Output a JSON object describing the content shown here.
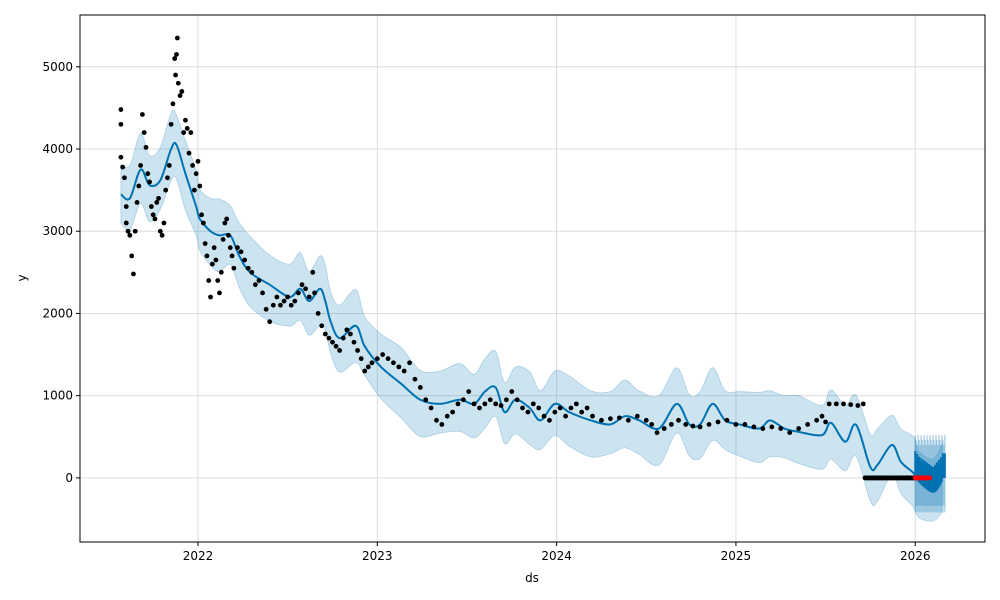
{
  "chart_data": {
    "type": "line",
    "title": "",
    "xlabel": "ds",
    "ylabel": "y",
    "xlim": [
      2021.342,
      2026.389
    ],
    "ylim": [
      -780,
      5630
    ],
    "grid": true,
    "x_ticks": [
      {
        "v": 2022,
        "label": "2022"
      },
      {
        "v": 2023,
        "label": "2023"
      },
      {
        "v": 2024,
        "label": "2024"
      },
      {
        "v": 2025,
        "label": "2025"
      },
      {
        "v": 2026,
        "label": "2026"
      }
    ],
    "y_ticks": [
      {
        "v": 0,
        "label": "0"
      },
      {
        "v": 1000,
        "label": "1000"
      },
      {
        "v": 2000,
        "label": "2000"
      },
      {
        "v": 3000,
        "label": "3000"
      },
      {
        "v": 4000,
        "label": "4000"
      },
      {
        "v": 5000,
        "label": "5000"
      }
    ],
    "colors": {
      "forecast": "#0072B2",
      "band": "#0072B2",
      "observed": "#000000",
      "future_points": "#ff0000"
    },
    "yhat": [
      [
        2021.57,
        3450
      ],
      [
        2021.62,
        3400
      ],
      [
        2021.68,
        3750
      ],
      [
        2021.73,
        3560
      ],
      [
        2021.79,
        3620
      ],
      [
        2021.85,
        4000
      ],
      [
        2021.88,
        4050
      ],
      [
        2021.93,
        3700
      ],
      [
        2021.99,
        3300
      ],
      [
        2022.01,
        3150
      ],
      [
        2022.07,
        3000
      ],
      [
        2022.12,
        2950
      ],
      [
        2022.18,
        2950
      ],
      [
        2022.23,
        2700
      ],
      [
        2022.29,
        2500
      ],
      [
        2022.4,
        2350
      ],
      [
        2022.51,
        2200
      ],
      [
        2022.57,
        2300
      ],
      [
        2022.62,
        2150
      ],
      [
        2022.68,
        2300
      ],
      [
        2022.71,
        2150
      ],
      [
        2022.74,
        1900
      ],
      [
        2022.79,
        1700
      ],
      [
        2022.88,
        1850
      ],
      [
        2022.93,
        1600
      ],
      [
        2023.02,
        1350
      ],
      [
        2023.13,
        1150
      ],
      [
        2023.24,
        950
      ],
      [
        2023.35,
        900
      ],
      [
        2023.46,
        950
      ],
      [
        2023.54,
        900
      ],
      [
        2023.6,
        1050
      ],
      [
        2023.66,
        1100
      ],
      [
        2023.71,
        800
      ],
      [
        2023.77,
        950
      ],
      [
        2023.85,
        850
      ],
      [
        2023.91,
        700
      ],
      [
        2023.99,
        900
      ],
      [
        2024.07,
        800
      ],
      [
        2024.19,
        700
      ],
      [
        2024.3,
        650
      ],
      [
        2024.38,
        750
      ],
      [
        2024.46,
        700
      ],
      [
        2024.57,
        600
      ],
      [
        2024.67,
        900
      ],
      [
        2024.74,
        650
      ],
      [
        2024.8,
        650
      ],
      [
        2024.87,
        900
      ],
      [
        2024.94,
        700
      ],
      [
        2025.02,
        650
      ],
      [
        2025.13,
        600
      ],
      [
        2025.19,
        700
      ],
      [
        2025.27,
        600
      ],
      [
        2025.35,
        560
      ],
      [
        2025.48,
        520
      ],
      [
        2025.53,
        670
      ],
      [
        2025.61,
        440
      ],
      [
        2025.67,
        645
      ],
      [
        2025.75,
        130
      ],
      [
        2025.79,
        160
      ],
      [
        2025.87,
        400
      ],
      [
        2025.92,
        195
      ],
      [
        2025.99,
        60
      ],
      [
        2026.02,
        -40
      ],
      [
        2026.1,
        -170
      ],
      [
        2026.15,
        -30
      ]
    ],
    "band_halfwidth": 400,
    "observed": [
      [
        2021.57,
        4480
      ],
      [
        2021.57,
        4300
      ],
      [
        2021.57,
        3900
      ],
      [
        2021.58,
        3780
      ],
      [
        2021.59,
        3650
      ],
      [
        2021.6,
        3300
      ],
      [
        2021.6,
        3100
      ],
      [
        2021.61,
        3000
      ],
      [
        2021.62,
        2950
      ],
      [
        2021.63,
        2700
      ],
      [
        2021.64,
        2480
      ],
      [
        2021.65,
        3000
      ],
      [
        2021.66,
        3350
      ],
      [
        2021.67,
        3550
      ],
      [
        2021.68,
        3800
      ],
      [
        2021.69,
        4420
      ],
      [
        2021.7,
        4200
      ],
      [
        2021.71,
        4020
      ],
      [
        2021.72,
        3700
      ],
      [
        2021.73,
        3600
      ],
      [
        2021.74,
        3300
      ],
      [
        2021.75,
        3200
      ],
      [
        2021.76,
        3150
      ],
      [
        2021.77,
        3350
      ],
      [
        2021.78,
        3400
      ],
      [
        2021.79,
        3000
      ],
      [
        2021.8,
        2950
      ],
      [
        2021.81,
        3100
      ],
      [
        2021.82,
        3500
      ],
      [
        2021.83,
        3650
      ],
      [
        2021.84,
        3800
      ],
      [
        2021.85,
        4300
      ],
      [
        2021.86,
        4550
      ],
      [
        2021.87,
        5100
      ],
      [
        2021.875,
        4900
      ],
      [
        2021.88,
        5150
      ],
      [
        2021.885,
        5350
      ],
      [
        2021.89,
        4800
      ],
      [
        2021.9,
        4650
      ],
      [
        2021.91,
        4700
      ],
      [
        2021.92,
        4200
      ],
      [
        2021.93,
        4350
      ],
      [
        2021.94,
        4250
      ],
      [
        2021.95,
        3950
      ],
      [
        2021.96,
        4200
      ],
      [
        2021.97,
        3800
      ],
      [
        2021.98,
        3500
      ],
      [
        2021.99,
        3700
      ],
      [
        2022.0,
        3850
      ],
      [
        2022.01,
        3550
      ],
      [
        2022.02,
        3200
      ],
      [
        2022.03,
        3100
      ],
      [
        2022.04,
        2850
      ],
      [
        2022.05,
        2700
      ],
      [
        2022.06,
        2400
      ],
      [
        2022.07,
        2200
      ],
      [
        2022.08,
        2600
      ],
      [
        2022.09,
        2800
      ],
      [
        2022.1,
        2650
      ],
      [
        2022.11,
        2400
      ],
      [
        2022.12,
        2250
      ],
      [
        2022.13,
        2500
      ],
      [
        2022.14,
        2900
      ],
      [
        2022.15,
        3100
      ],
      [
        2022.16,
        3150
      ],
      [
        2022.17,
        2950
      ],
      [
        2022.18,
        2800
      ],
      [
        2022.19,
        2700
      ],
      [
        2022.2,
        2550
      ],
      [
        2022.22,
        2800
      ],
      [
        2022.24,
        2750
      ],
      [
        2022.26,
        2650
      ],
      [
        2022.28,
        2550
      ],
      [
        2022.3,
        2500
      ],
      [
        2022.32,
        2350
      ],
      [
        2022.34,
        2400
      ],
      [
        2022.36,
        2250
      ],
      [
        2022.38,
        2050
      ],
      [
        2022.4,
        1900
      ],
      [
        2022.42,
        2100
      ],
      [
        2022.44,
        2200
      ],
      [
        2022.46,
        2100
      ],
      [
        2022.48,
        2150
      ],
      [
        2022.5,
        2200
      ],
      [
        2022.52,
        2100
      ],
      [
        2022.54,
        2150
      ],
      [
        2022.56,
        2250
      ],
      [
        2022.58,
        2350
      ],
      [
        2022.6,
        2300
      ],
      [
        2022.62,
        2200
      ],
      [
        2022.64,
        2500
      ],
      [
        2022.65,
        2250
      ],
      [
        2022.67,
        2000
      ],
      [
        2022.69,
        1850
      ],
      [
        2022.71,
        1750
      ],
      [
        2022.73,
        1700
      ],
      [
        2022.75,
        1650
      ],
      [
        2022.77,
        1600
      ],
      [
        2022.79,
        1550
      ],
      [
        2022.81,
        1700
      ],
      [
        2022.83,
        1800
      ],
      [
        2022.85,
        1750
      ],
      [
        2022.87,
        1650
      ],
      [
        2022.89,
        1550
      ],
      [
        2022.91,
        1450
      ],
      [
        2022.93,
        1300
      ],
      [
        2022.95,
        1350
      ],
      [
        2022.97,
        1400
      ],
      [
        2023.0,
        1450
      ],
      [
        2023.03,
        1500
      ],
      [
        2023.06,
        1450
      ],
      [
        2023.09,
        1400
      ],
      [
        2023.12,
        1350
      ],
      [
        2023.15,
        1300
      ],
      [
        2023.18,
        1400
      ],
      [
        2023.21,
        1200
      ],
      [
        2023.24,
        1100
      ],
      [
        2023.27,
        950
      ],
      [
        2023.3,
        850
      ],
      [
        2023.33,
        700
      ],
      [
        2023.36,
        650
      ],
      [
        2023.39,
        750
      ],
      [
        2023.42,
        800
      ],
      [
        2023.45,
        900
      ],
      [
        2023.48,
        950
      ],
      [
        2023.51,
        1050
      ],
      [
        2023.54,
        900
      ],
      [
        2023.57,
        850
      ],
      [
        2023.6,
        900
      ],
      [
        2023.63,
        950
      ],
      [
        2023.66,
        900
      ],
      [
        2023.69,
        880
      ],
      [
        2023.72,
        950
      ],
      [
        2023.75,
        1050
      ],
      [
        2023.78,
        950
      ],
      [
        2023.81,
        850
      ],
      [
        2023.84,
        800
      ],
      [
        2023.87,
        900
      ],
      [
        2023.9,
        850
      ],
      [
        2023.93,
        750
      ],
      [
        2023.96,
        700
      ],
      [
        2023.99,
        800
      ],
      [
        2024.02,
        850
      ],
      [
        2024.05,
        750
      ],
      [
        2024.08,
        850
      ],
      [
        2024.11,
        900
      ],
      [
        2024.14,
        800
      ],
      [
        2024.17,
        850
      ],
      [
        2024.2,
        750
      ],
      [
        2024.25,
        700
      ],
      [
        2024.3,
        720
      ],
      [
        2024.35,
        730
      ],
      [
        2024.4,
        700
      ],
      [
        2024.45,
        750
      ],
      [
        2024.5,
        700
      ],
      [
        2024.53,
        650
      ],
      [
        2024.56,
        550
      ],
      [
        2024.6,
        600
      ],
      [
        2024.64,
        650
      ],
      [
        2024.68,
        700
      ],
      [
        2024.72,
        650
      ],
      [
        2024.76,
        630
      ],
      [
        2024.8,
        620
      ],
      [
        2024.85,
        650
      ],
      [
        2024.9,
        680
      ],
      [
        2024.95,
        700
      ],
      [
        2025.0,
        650
      ],
      [
        2025.05,
        650
      ],
      [
        2025.1,
        620
      ],
      [
        2025.15,
        600
      ],
      [
        2025.2,
        620
      ],
      [
        2025.25,
        600
      ],
      [
        2025.3,
        550
      ],
      [
        2025.35,
        600
      ],
      [
        2025.4,
        650
      ],
      [
        2025.45,
        700
      ],
      [
        2025.48,
        750
      ],
      [
        2025.5,
        680
      ],
      [
        2025.52,
        900
      ],
      [
        2025.56,
        900
      ],
      [
        2025.6,
        900
      ],
      [
        2025.64,
        890
      ],
      [
        2025.68,
        880
      ],
      [
        2025.71,
        900
      ]
    ],
    "observed_zero_run": {
      "start": 2025.72,
      "end": 2026.0,
      "value": 0
    },
    "future_points": {
      "start": 2026.0,
      "end": 2026.08,
      "value": 0
    },
    "forecast_intervals": {
      "start": 2026.0,
      "end": 2026.17,
      "lower": -420,
      "upper": 520
    }
  }
}
